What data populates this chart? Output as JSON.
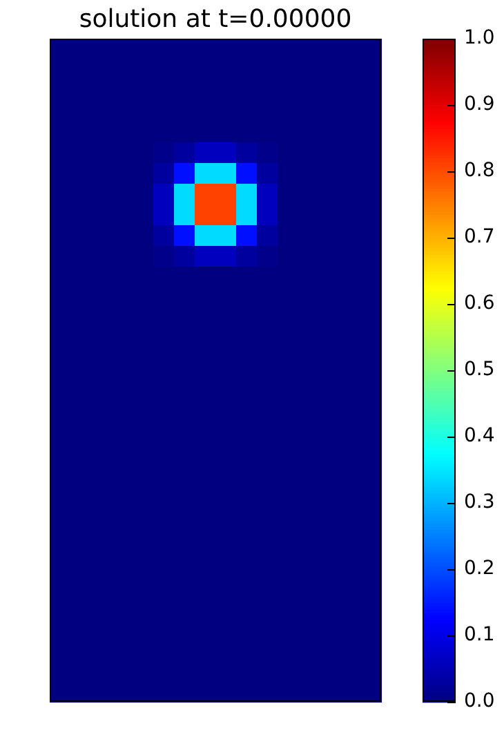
{
  "chart_data": {
    "type": "heatmap",
    "title": "solution at t=0.00000",
    "categories": [
      null,
      null,
      null,
      null,
      null,
      null,
      null,
      null,
      null,
      null,
      null,
      null,
      null,
      null,
      null,
      null
    ],
    "y_categories": [
      null,
      null,
      null,
      null,
      null,
      null,
      null,
      null,
      null,
      null,
      null,
      null,
      null,
      null,
      null,
      null,
      null,
      null,
      null,
      null,
      null,
      null,
      null,
      null,
      null,
      null,
      null,
      null,
      null,
      null,
      null,
      null
    ],
    "cells": [
      [
        0,
        0,
        0,
        0,
        0,
        0,
        0,
        0,
        0,
        0,
        0,
        0,
        0,
        0,
        0,
        0
      ],
      [
        0,
        0,
        0,
        0,
        0,
        0,
        0,
        0,
        0,
        0,
        0,
        0,
        0,
        0,
        0,
        0
      ],
      [
        0,
        0,
        0,
        0,
        0,
        0,
        0,
        0,
        0,
        0,
        0,
        0,
        0,
        0,
        0,
        0
      ],
      [
        0,
        0,
        0,
        0,
        0,
        0,
        0,
        0,
        0,
        0,
        0,
        0,
        0,
        0,
        0,
        0
      ],
      [
        0,
        0,
        0,
        0,
        0,
        0,
        0,
        0,
        0,
        0,
        0,
        0,
        0,
        0,
        0,
        0
      ],
      [
        0,
        0,
        0,
        0,
        0,
        0.01,
        0.03,
        0.06,
        0.06,
        0.03,
        0.01,
        0,
        0,
        0,
        0,
        0
      ],
      [
        0,
        0,
        0,
        0,
        0,
        0.03,
        0.14,
        0.34,
        0.34,
        0.14,
        0.03,
        0,
        0,
        0,
        0,
        0
      ],
      [
        0,
        0,
        0,
        0,
        0,
        0.06,
        0.34,
        0.81,
        0.81,
        0.34,
        0.06,
        0,
        0,
        0,
        0,
        0
      ],
      [
        0,
        0,
        0,
        0,
        0,
        0.06,
        0.34,
        0.81,
        0.81,
        0.34,
        0.06,
        0,
        0,
        0,
        0,
        0
      ],
      [
        0,
        0,
        0,
        0,
        0,
        0.03,
        0.14,
        0.34,
        0.34,
        0.14,
        0.03,
        0,
        0,
        0,
        0,
        0
      ],
      [
        0,
        0,
        0,
        0,
        0,
        0.01,
        0.03,
        0.06,
        0.06,
        0.03,
        0.01,
        0,
        0,
        0,
        0,
        0
      ],
      [
        0,
        0,
        0,
        0,
        0,
        0,
        0,
        0,
        0,
        0,
        0,
        0,
        0,
        0,
        0,
        0
      ],
      [
        0,
        0,
        0,
        0,
        0,
        0,
        0,
        0,
        0,
        0,
        0,
        0,
        0,
        0,
        0,
        0
      ],
      [
        0,
        0,
        0,
        0,
        0,
        0,
        0,
        0,
        0,
        0,
        0,
        0,
        0,
        0,
        0,
        0
      ],
      [
        0,
        0,
        0,
        0,
        0,
        0,
        0,
        0,
        0,
        0,
        0,
        0,
        0,
        0,
        0,
        0
      ],
      [
        0,
        0,
        0,
        0,
        0,
        0,
        0,
        0,
        0,
        0,
        0,
        0,
        0,
        0,
        0,
        0
      ],
      [
        0,
        0,
        0,
        0,
        0,
        0,
        0,
        0,
        0,
        0,
        0,
        0,
        0,
        0,
        0,
        0
      ],
      [
        0,
        0,
        0,
        0,
        0,
        0,
        0,
        0,
        0,
        0,
        0,
        0,
        0,
        0,
        0,
        0
      ],
      [
        0,
        0,
        0,
        0,
        0,
        0,
        0,
        0,
        0,
        0,
        0,
        0,
        0,
        0,
        0,
        0
      ],
      [
        0,
        0,
        0,
        0,
        0,
        0,
        0,
        0,
        0,
        0,
        0,
        0,
        0,
        0,
        0,
        0
      ],
      [
        0,
        0,
        0,
        0,
        0,
        0,
        0,
        0,
        0,
        0,
        0,
        0,
        0,
        0,
        0,
        0
      ],
      [
        0,
        0,
        0,
        0,
        0,
        0,
        0,
        0,
        0,
        0,
        0,
        0,
        0,
        0,
        0,
        0
      ],
      [
        0,
        0,
        0,
        0,
        0,
        0,
        0,
        0,
        0,
        0,
        0,
        0,
        0,
        0,
        0,
        0
      ],
      [
        0,
        0,
        0,
        0,
        0,
        0,
        0,
        0,
        0,
        0,
        0,
        0,
        0,
        0,
        0,
        0
      ],
      [
        0,
        0,
        0,
        0,
        0,
        0,
        0,
        0,
        0,
        0,
        0,
        0,
        0,
        0,
        0,
        0
      ],
      [
        0,
        0,
        0,
        0,
        0,
        0,
        0,
        0,
        0,
        0,
        0,
        0,
        0,
        0,
        0,
        0
      ],
      [
        0,
        0,
        0,
        0,
        0,
        0,
        0,
        0,
        0,
        0,
        0,
        0,
        0,
        0,
        0,
        0
      ],
      [
        0,
        0,
        0,
        0,
        0,
        0,
        0,
        0,
        0,
        0,
        0,
        0,
        0,
        0,
        0,
        0
      ],
      [
        0,
        0,
        0,
        0,
        0,
        0,
        0,
        0,
        0,
        0,
        0,
        0,
        0,
        0,
        0,
        0
      ],
      [
        0,
        0,
        0,
        0,
        0,
        0,
        0,
        0,
        0,
        0,
        0,
        0,
        0,
        0,
        0,
        0
      ],
      [
        0,
        0,
        0,
        0,
        0,
        0,
        0,
        0,
        0,
        0,
        0,
        0,
        0,
        0,
        0,
        0
      ],
      [
        0,
        0,
        0,
        0,
        0,
        0,
        0,
        0,
        0,
        0,
        0,
        0,
        0,
        0,
        0,
        0
      ]
    ],
    "clim": [
      0,
      1
    ],
    "cticks": [
      {
        "value": 0,
        "label": "0.0"
      },
      {
        "value": 0.1,
        "label": "0.1"
      },
      {
        "value": 0.2,
        "label": "0.2"
      },
      {
        "value": 0.3,
        "label": "0.3"
      },
      {
        "value": 0.4,
        "label": "0.4"
      },
      {
        "value": 0.5,
        "label": "0.5"
      },
      {
        "value": 0.6,
        "label": "0.6"
      },
      {
        "value": 0.7,
        "label": "0.7"
      },
      {
        "value": 0.8,
        "label": "0.8"
      },
      {
        "value": 0.9,
        "label": "0.9"
      },
      {
        "value": 1,
        "label": "1.0"
      }
    ]
  }
}
